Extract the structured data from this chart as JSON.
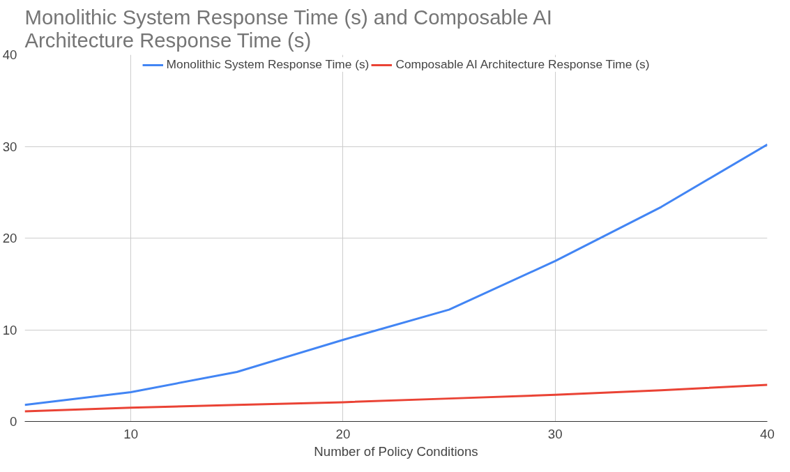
{
  "chart_data": {
    "type": "line",
    "title": "Monolithic System Response Time (s) and Composable AI Architecture Response Time (s)",
    "xlabel": "Number of Policy Conditions",
    "x": [
      5,
      10,
      15,
      20,
      25,
      30,
      35,
      40
    ],
    "series": [
      {
        "name": "Monolithic System Response Time (s)",
        "color": "#4285f4",
        "values": [
          1.8,
          3.2,
          5.4,
          8.9,
          12.2,
          17.5,
          23.4,
          30.2
        ]
      },
      {
        "name": "Composable AI Architecture Response Time (s)",
        "color": "#ea4335",
        "values": [
          1.1,
          1.5,
          1.8,
          2.1,
          2.5,
          2.9,
          3.4,
          4.0
        ]
      }
    ],
    "xlim": [
      5,
      40
    ],
    "xticks": [
      10,
      20,
      30,
      40
    ],
    "ylim": [
      0,
      40
    ],
    "yticks": [
      0,
      10,
      20,
      30,
      40
    ],
    "grid": true,
    "legend": "top",
    "line_style": "solid",
    "marker": "none"
  }
}
